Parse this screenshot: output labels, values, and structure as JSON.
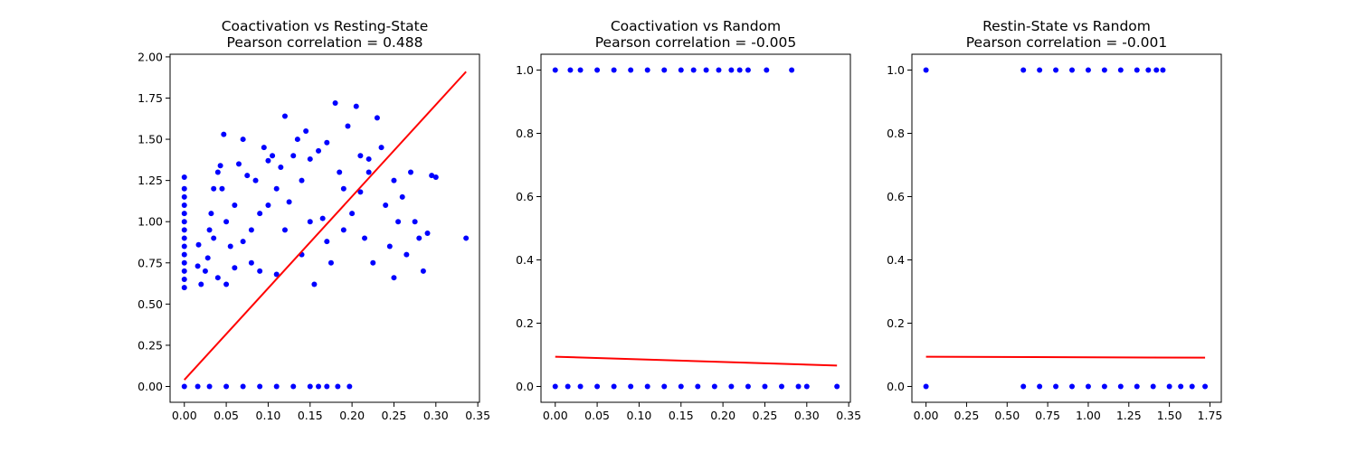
{
  "colors": {
    "points": "#0000ff",
    "fit_line": "#ff0000",
    "axes": "#000000",
    "background": "#ffffff"
  },
  "chart_data": [
    {
      "type": "scatter",
      "title": "Coactivation vs Resting-State",
      "subtitle": "Pearson correlation = 0.488",
      "xlabel": "",
      "ylabel": "",
      "xlim": [
        -0.017,
        0.352
      ],
      "ylim": [
        -0.096,
        2.016
      ],
      "xticks": [
        0.0,
        0.05,
        0.1,
        0.15,
        0.2,
        0.25,
        0.3,
        0.35
      ],
      "xtick_labels": [
        "0.00",
        "0.05",
        "0.10",
        "0.15",
        "0.20",
        "0.25",
        "0.30",
        "0.35"
      ],
      "yticks": [
        0.0,
        0.25,
        0.5,
        0.75,
        1.0,
        1.25,
        1.5,
        1.75,
        2.0
      ],
      "ytick_labels": [
        "0.00",
        "0.25",
        "0.50",
        "0.75",
        "1.00",
        "1.25",
        "1.50",
        "1.75",
        "2.00"
      ],
      "grid": false,
      "points": [
        {
          "x": 0.0,
          "y": 0.0
        },
        {
          "x": 0.0,
          "y": 0.6
        },
        {
          "x": 0.0,
          "y": 0.65
        },
        {
          "x": 0.0,
          "y": 0.7
        },
        {
          "x": 0.0,
          "y": 0.75
        },
        {
          "x": 0.0,
          "y": 0.8
        },
        {
          "x": 0.0,
          "y": 0.85
        },
        {
          "x": 0.0,
          "y": 0.9
        },
        {
          "x": 0.0,
          "y": 0.95
        },
        {
          "x": 0.0,
          "y": 1.0
        },
        {
          "x": 0.0,
          "y": 1.05
        },
        {
          "x": 0.0,
          "y": 1.1
        },
        {
          "x": 0.0,
          "y": 1.15
        },
        {
          "x": 0.0,
          "y": 1.2
        },
        {
          "x": 0.0,
          "y": 1.27
        },
        {
          "x": 0.016,
          "y": 0.0
        },
        {
          "x": 0.03,
          "y": 0.0
        },
        {
          "x": 0.05,
          "y": 0.0
        },
        {
          "x": 0.07,
          "y": 0.0
        },
        {
          "x": 0.09,
          "y": 0.0
        },
        {
          "x": 0.11,
          "y": 0.0
        },
        {
          "x": 0.13,
          "y": 0.0
        },
        {
          "x": 0.15,
          "y": 0.0
        },
        {
          "x": 0.16,
          "y": 0.0
        },
        {
          "x": 0.17,
          "y": 0.0
        },
        {
          "x": 0.183,
          "y": 0.0
        },
        {
          "x": 0.197,
          "y": 0.0
        },
        {
          "x": 0.017,
          "y": 0.86
        },
        {
          "x": 0.016,
          "y": 0.73
        },
        {
          "x": 0.02,
          "y": 0.62
        },
        {
          "x": 0.025,
          "y": 0.7
        },
        {
          "x": 0.028,
          "y": 0.78
        },
        {
          "x": 0.03,
          "y": 0.95
        },
        {
          "x": 0.032,
          "y": 1.05
        },
        {
          "x": 0.035,
          "y": 1.2
        },
        {
          "x": 0.04,
          "y": 1.3
        },
        {
          "x": 0.043,
          "y": 1.34
        },
        {
          "x": 0.047,
          "y": 1.53
        },
        {
          "x": 0.05,
          "y": 0.62
        },
        {
          "x": 0.055,
          "y": 0.85
        },
        {
          "x": 0.06,
          "y": 1.1
        },
        {
          "x": 0.065,
          "y": 1.35
        },
        {
          "x": 0.07,
          "y": 1.5
        },
        {
          "x": 0.075,
          "y": 1.28
        },
        {
          "x": 0.08,
          "y": 0.95
        },
        {
          "x": 0.085,
          "y": 1.25
        },
        {
          "x": 0.09,
          "y": 0.7
        },
        {
          "x": 0.095,
          "y": 1.45
        },
        {
          "x": 0.1,
          "y": 1.37
        },
        {
          "x": 0.105,
          "y": 1.4
        },
        {
          "x": 0.11,
          "y": 1.2
        },
        {
          "x": 0.115,
          "y": 1.33
        },
        {
          "x": 0.12,
          "y": 1.64
        },
        {
          "x": 0.125,
          "y": 1.12
        },
        {
          "x": 0.13,
          "y": 1.4
        },
        {
          "x": 0.135,
          "y": 1.5
        },
        {
          "x": 0.14,
          "y": 1.25
        },
        {
          "x": 0.145,
          "y": 1.55
        },
        {
          "x": 0.15,
          "y": 1.38
        },
        {
          "x": 0.155,
          "y": 0.62
        },
        {
          "x": 0.16,
          "y": 1.43
        },
        {
          "x": 0.165,
          "y": 1.02
        },
        {
          "x": 0.17,
          "y": 1.48
        },
        {
          "x": 0.175,
          "y": 0.75
        },
        {
          "x": 0.18,
          "y": 1.72
        },
        {
          "x": 0.185,
          "y": 1.3
        },
        {
          "x": 0.19,
          "y": 1.2
        },
        {
          "x": 0.195,
          "y": 1.58
        },
        {
          "x": 0.2,
          "y": 1.05
        },
        {
          "x": 0.205,
          "y": 1.7
        },
        {
          "x": 0.21,
          "y": 1.4
        },
        {
          "x": 0.215,
          "y": 0.9
        },
        {
          "x": 0.22,
          "y": 1.3
        },
        {
          "x": 0.225,
          "y": 0.75
        },
        {
          "x": 0.23,
          "y": 1.63
        },
        {
          "x": 0.235,
          "y": 1.45
        },
        {
          "x": 0.24,
          "y": 1.1
        },
        {
          "x": 0.245,
          "y": 0.85
        },
        {
          "x": 0.25,
          "y": 1.25
        },
        {
          "x": 0.255,
          "y": 1.0
        },
        {
          "x": 0.26,
          "y": 1.15
        },
        {
          "x": 0.265,
          "y": 0.8
        },
        {
          "x": 0.27,
          "y": 1.3
        },
        {
          "x": 0.275,
          "y": 1.0
        },
        {
          "x": 0.28,
          "y": 0.9
        },
        {
          "x": 0.285,
          "y": 0.7
        },
        {
          "x": 0.29,
          "y": 0.93
        },
        {
          "x": 0.295,
          "y": 1.28
        },
        {
          "x": 0.3,
          "y": 1.27
        },
        {
          "x": 0.336,
          "y": 0.9
        },
        {
          "x": 0.25,
          "y": 0.66
        },
        {
          "x": 0.22,
          "y": 1.38
        },
        {
          "x": 0.21,
          "y": 1.18
        },
        {
          "x": 0.19,
          "y": 0.95
        },
        {
          "x": 0.17,
          "y": 0.88
        },
        {
          "x": 0.15,
          "y": 1.0
        },
        {
          "x": 0.14,
          "y": 0.8
        },
        {
          "x": 0.12,
          "y": 0.95
        },
        {
          "x": 0.11,
          "y": 0.68
        },
        {
          "x": 0.1,
          "y": 1.1
        },
        {
          "x": 0.09,
          "y": 1.05
        },
        {
          "x": 0.08,
          "y": 0.75
        },
        {
          "x": 0.07,
          "y": 0.88
        },
        {
          "x": 0.06,
          "y": 0.72
        },
        {
          "x": 0.05,
          "y": 1.0
        },
        {
          "x": 0.045,
          "y": 1.2
        },
        {
          "x": 0.04,
          "y": 0.66
        },
        {
          "x": 0.035,
          "y": 0.9
        }
      ],
      "fit_line": {
        "x": [
          0.0,
          0.336
        ],
        "y": [
          0.04,
          1.91
        ]
      }
    },
    {
      "type": "scatter",
      "title": "Coactivation vs Random",
      "subtitle": "Pearson correlation = -0.005",
      "xlabel": "",
      "ylabel": "",
      "xlim": [
        -0.017,
        0.352
      ],
      "ylim": [
        -0.05,
        1.05
      ],
      "xticks": [
        0.0,
        0.05,
        0.1,
        0.15,
        0.2,
        0.25,
        0.3,
        0.35
      ],
      "xtick_labels": [
        "0.00",
        "0.05",
        "0.10",
        "0.15",
        "0.20",
        "0.25",
        "0.30",
        "0.35"
      ],
      "yticks": [
        0.0,
        0.2,
        0.4,
        0.6,
        0.8,
        1.0
      ],
      "ytick_labels": [
        "0.0",
        "0.2",
        "0.4",
        "0.6",
        "0.8",
        "1.0"
      ],
      "grid": false,
      "points": [
        {
          "x": 0.0,
          "y": 1.0
        },
        {
          "x": 0.0,
          "y": 0.0
        },
        {
          "x": 0.018,
          "y": 1.0
        },
        {
          "x": 0.03,
          "y": 1.0
        },
        {
          "x": 0.05,
          "y": 1.0
        },
        {
          "x": 0.07,
          "y": 1.0
        },
        {
          "x": 0.09,
          "y": 1.0
        },
        {
          "x": 0.11,
          "y": 1.0
        },
        {
          "x": 0.13,
          "y": 1.0
        },
        {
          "x": 0.15,
          "y": 1.0
        },
        {
          "x": 0.165,
          "y": 1.0
        },
        {
          "x": 0.18,
          "y": 1.0
        },
        {
          "x": 0.195,
          "y": 1.0
        },
        {
          "x": 0.21,
          "y": 1.0
        },
        {
          "x": 0.22,
          "y": 1.0
        },
        {
          "x": 0.23,
          "y": 1.0
        },
        {
          "x": 0.252,
          "y": 1.0
        },
        {
          "x": 0.282,
          "y": 1.0
        },
        {
          "x": 0.015,
          "y": 0.0
        },
        {
          "x": 0.03,
          "y": 0.0
        },
        {
          "x": 0.05,
          "y": 0.0
        },
        {
          "x": 0.07,
          "y": 0.0
        },
        {
          "x": 0.09,
          "y": 0.0
        },
        {
          "x": 0.11,
          "y": 0.0
        },
        {
          "x": 0.13,
          "y": 0.0
        },
        {
          "x": 0.15,
          "y": 0.0
        },
        {
          "x": 0.17,
          "y": 0.0
        },
        {
          "x": 0.19,
          "y": 0.0
        },
        {
          "x": 0.21,
          "y": 0.0
        },
        {
          "x": 0.23,
          "y": 0.0
        },
        {
          "x": 0.25,
          "y": 0.0
        },
        {
          "x": 0.27,
          "y": 0.0
        },
        {
          "x": 0.29,
          "y": 0.0
        },
        {
          "x": 0.3,
          "y": 0.0
        },
        {
          "x": 0.336,
          "y": 0.0
        }
      ],
      "fit_line": {
        "x": [
          0.0,
          0.336
        ],
        "y": [
          0.094,
          0.066
        ]
      }
    },
    {
      "type": "scatter",
      "title": "Restin-State vs Random",
      "subtitle": "Pearson correlation = -0.001",
      "xlabel": "",
      "ylabel": "",
      "xlim": [
        -0.087,
        1.82
      ],
      "ylim": [
        -0.05,
        1.05
      ],
      "xticks": [
        0.0,
        0.25,
        0.5,
        0.75,
        1.0,
        1.25,
        1.5,
        1.75
      ],
      "xtick_labels": [
        "0.00",
        "0.25",
        "0.50",
        "0.75",
        "1.00",
        "1.25",
        "1.50",
        "1.75"
      ],
      "yticks": [
        0.0,
        0.2,
        0.4,
        0.6,
        0.8,
        1.0
      ],
      "ytick_labels": [
        "0.0",
        "0.2",
        "0.4",
        "0.6",
        "0.8",
        "1.0"
      ],
      "grid": false,
      "points": [
        {
          "x": 0.0,
          "y": 1.0
        },
        {
          "x": 0.0,
          "y": 0.0
        },
        {
          "x": 0.6,
          "y": 1.0
        },
        {
          "x": 0.7,
          "y": 1.0
        },
        {
          "x": 0.8,
          "y": 1.0
        },
        {
          "x": 0.9,
          "y": 1.0
        },
        {
          "x": 1.0,
          "y": 1.0
        },
        {
          "x": 1.1,
          "y": 1.0
        },
        {
          "x": 1.2,
          "y": 1.0
        },
        {
          "x": 1.3,
          "y": 1.0
        },
        {
          "x": 1.37,
          "y": 1.0
        },
        {
          "x": 1.42,
          "y": 1.0
        },
        {
          "x": 1.46,
          "y": 1.0
        },
        {
          "x": 0.6,
          "y": 0.0
        },
        {
          "x": 0.7,
          "y": 0.0
        },
        {
          "x": 0.8,
          "y": 0.0
        },
        {
          "x": 0.9,
          "y": 0.0
        },
        {
          "x": 1.0,
          "y": 0.0
        },
        {
          "x": 1.1,
          "y": 0.0
        },
        {
          "x": 1.2,
          "y": 0.0
        },
        {
          "x": 1.3,
          "y": 0.0
        },
        {
          "x": 1.4,
          "y": 0.0
        },
        {
          "x": 1.5,
          "y": 0.0
        },
        {
          "x": 1.57,
          "y": 0.0
        },
        {
          "x": 1.64,
          "y": 0.0
        },
        {
          "x": 1.72,
          "y": 0.0
        }
      ],
      "fit_line": {
        "x": [
          0.0,
          1.72
        ],
        "y": [
          0.094,
          0.091
        ]
      }
    }
  ]
}
